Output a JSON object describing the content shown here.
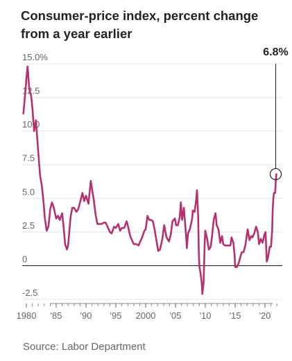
{
  "title": "Consumer-price index, percent change from a year earlier",
  "source": "Source: Labor Department",
  "chart_data": {
    "type": "line",
    "title": "Consumer-price index, percent change from a year earlier",
    "xlabel": "",
    "ylabel": "",
    "xlim": [
      1979.3,
      2022.9
    ],
    "ylim": [
      -2.5,
      15
    ],
    "grid": true,
    "y_ticks": [
      {
        "value": 15,
        "label": "15.0%"
      },
      {
        "value": 12.5,
        "label": "12.5"
      },
      {
        "value": 10,
        "label": "10.0"
      },
      {
        "value": 7.5,
        "label": "7.5"
      },
      {
        "value": 5,
        "label": "5.0"
      },
      {
        "value": 2.5,
        "label": "2.5"
      },
      {
        "value": 0,
        "label": "0"
      },
      {
        "value": -2.5,
        "label": "-2.5"
      }
    ],
    "x_ticks": [
      {
        "value": 1980,
        "label": "1980"
      },
      {
        "value": 1985,
        "label": "'85"
      },
      {
        "value": 1990,
        "label": "'90"
      },
      {
        "value": 1995,
        "label": "'95"
      },
      {
        "value": 2000,
        "label": "2000"
      },
      {
        "value": 2005,
        "label": "'05"
      },
      {
        "value": 2010,
        "label": "'10"
      },
      {
        "value": 2015,
        "label": "'15"
      },
      {
        "value": 2020,
        "label": "'20"
      }
    ],
    "annotation": {
      "x": 2021.8,
      "y": 6.8,
      "label": "6.8%"
    },
    "series": [
      {
        "color": "#b5306e",
        "points": [
          [
            1979.0,
            9.3
          ],
          [
            1979.5,
            11.3
          ],
          [
            1979.9,
            13.3
          ],
          [
            1980.0,
            13.9
          ],
          [
            1980.2,
            14.8
          ],
          [
            1980.5,
            13.1
          ],
          [
            1980.8,
            12.6
          ],
          [
            1981.0,
            11.8
          ],
          [
            1981.3,
            10.0
          ],
          [
            1981.6,
            10.8
          ],
          [
            1981.8,
            9.6
          ],
          [
            1982.0,
            8.4
          ],
          [
            1982.3,
            6.7
          ],
          [
            1982.6,
            5.9
          ],
          [
            1982.9,
            4.6
          ],
          [
            1983.1,
            3.5
          ],
          [
            1983.4,
            2.6
          ],
          [
            1983.7,
            2.9
          ],
          [
            1984.0,
            4.2
          ],
          [
            1984.3,
            4.7
          ],
          [
            1984.6,
            4.3
          ],
          [
            1985.0,
            3.5
          ],
          [
            1985.3,
            3.7
          ],
          [
            1985.6,
            3.4
          ],
          [
            1986.0,
            3.9
          ],
          [
            1986.2,
            3.1
          ],
          [
            1986.5,
            1.6
          ],
          [
            1986.8,
            1.2
          ],
          [
            1987.0,
            1.5
          ],
          [
            1987.4,
            3.6
          ],
          [
            1987.7,
            4.3
          ],
          [
            1988.0,
            4.3
          ],
          [
            1988.4,
            4.0
          ],
          [
            1988.7,
            4.2
          ],
          [
            1989.0,
            4.7
          ],
          [
            1989.4,
            5.4
          ],
          [
            1989.7,
            4.8
          ],
          [
            1990.0,
            5.2
          ],
          [
            1990.4,
            4.6
          ],
          [
            1990.8,
            6.3
          ],
          [
            1991.0,
            5.7
          ],
          [
            1991.3,
            4.9
          ],
          [
            1991.6,
            3.8
          ],
          [
            1991.9,
            3.1
          ],
          [
            1992.2,
            3.1
          ],
          [
            1992.6,
            3.1
          ],
          [
            1993.0,
            3.2
          ],
          [
            1993.3,
            3.2
          ],
          [
            1993.7,
            2.8
          ],
          [
            1994.0,
            2.5
          ],
          [
            1994.3,
            2.4
          ],
          [
            1994.7,
            2.9
          ],
          [
            1995.0,
            2.8
          ],
          [
            1995.4,
            3.1
          ],
          [
            1995.7,
            2.6
          ],
          [
            1996.0,
            2.8
          ],
          [
            1996.4,
            2.8
          ],
          [
            1996.8,
            3.3
          ],
          [
            1997.0,
            3.0
          ],
          [
            1997.4,
            2.2
          ],
          [
            1997.8,
            1.8
          ],
          [
            1998.0,
            1.6
          ],
          [
            1998.4,
            1.6
          ],
          [
            1998.8,
            1.5
          ],
          [
            1999.0,
            1.7
          ],
          [
            1999.4,
            2.1
          ],
          [
            1999.8,
            2.6
          ],
          [
            2000.0,
            2.7
          ],
          [
            2000.3,
            3.7
          ],
          [
            2000.6,
            3.4
          ],
          [
            2000.9,
            3.4
          ],
          [
            2001.2,
            3.3
          ],
          [
            2001.5,
            2.7
          ],
          [
            2001.9,
            1.6
          ],
          [
            2002.1,
            1.1
          ],
          [
            2002.4,
            1.2
          ],
          [
            2002.8,
            2.0
          ],
          [
            2003.1,
            3.0
          ],
          [
            2003.5,
            2.1
          ],
          [
            2003.9,
            1.8
          ],
          [
            2004.2,
            2.3
          ],
          [
            2004.5,
            3.3
          ],
          [
            2004.9,
            3.5
          ],
          [
            2005.1,
            3.0
          ],
          [
            2005.4,
            3.0
          ],
          [
            2005.7,
            3.6
          ],
          [
            2005.9,
            4.7
          ],
          [
            2006.1,
            3.4
          ],
          [
            2006.4,
            4.3
          ],
          [
            2006.8,
            2.1
          ],
          [
            2006.9,
            1.3
          ],
          [
            2007.1,
            2.4
          ],
          [
            2007.4,
            2.7
          ],
          [
            2007.8,
            3.5
          ],
          [
            2007.9,
            4.1
          ],
          [
            2008.2,
            4.0
          ],
          [
            2008.5,
            5.0
          ],
          [
            2008.6,
            5.6
          ],
          [
            2008.8,
            3.7
          ],
          [
            2008.9,
            1.1
          ],
          [
            2009.0,
            0.0
          ],
          [
            2009.2,
            -0.6
          ],
          [
            2009.4,
            -1.3
          ],
          [
            2009.5,
            -2.1
          ],
          [
            2009.7,
            -1.3
          ],
          [
            2009.9,
            1.8
          ],
          [
            2010.0,
            2.6
          ],
          [
            2010.3,
            2.0
          ],
          [
            2010.6,
            1.2
          ],
          [
            2010.9,
            1.4
          ],
          [
            2011.1,
            2.1
          ],
          [
            2011.4,
            3.4
          ],
          [
            2011.7,
            3.9
          ],
          [
            2011.9,
            3.0
          ],
          [
            2012.2,
            2.7
          ],
          [
            2012.5,
            1.7
          ],
          [
            2012.8,
            2.2
          ],
          [
            2013.0,
            1.6
          ],
          [
            2013.3,
            1.5
          ],
          [
            2013.6,
            1.5
          ],
          [
            2013.9,
            1.5
          ],
          [
            2014.2,
            1.5
          ],
          [
            2014.4,
            2.1
          ],
          [
            2014.7,
            1.7
          ],
          [
            2014.9,
            0.8
          ],
          [
            2015.0,
            -0.1
          ],
          [
            2015.3,
            -0.1
          ],
          [
            2015.6,
            0.2
          ],
          [
            2015.9,
            0.7
          ],
          [
            2016.1,
            1.0
          ],
          [
            2016.4,
            1.0
          ],
          [
            2016.7,
            1.5
          ],
          [
            2016.9,
            2.1
          ],
          [
            2017.1,
            2.7
          ],
          [
            2017.4,
            1.9
          ],
          [
            2017.7,
            2.2
          ],
          [
            2017.9,
            2.1
          ],
          [
            2018.2,
            2.4
          ],
          [
            2018.5,
            2.9
          ],
          [
            2018.8,
            2.5
          ],
          [
            2019.0,
            1.6
          ],
          [
            2019.3,
            2.0
          ],
          [
            2019.6,
            1.7
          ],
          [
            2019.9,
            2.3
          ],
          [
            2020.1,
            2.5
          ],
          [
            2020.3,
            0.3
          ],
          [
            2020.5,
            0.6
          ],
          [
            2020.8,
            1.4
          ],
          [
            2021.0,
            1.4
          ],
          [
            2021.2,
            2.6
          ],
          [
            2021.3,
            4.2
          ],
          [
            2021.4,
            5.0
          ],
          [
            2021.5,
            5.4
          ],
          [
            2021.7,
            5.4
          ],
          [
            2021.8,
            6.2
          ],
          [
            2021.9,
            6.8
          ]
        ]
      }
    ]
  }
}
